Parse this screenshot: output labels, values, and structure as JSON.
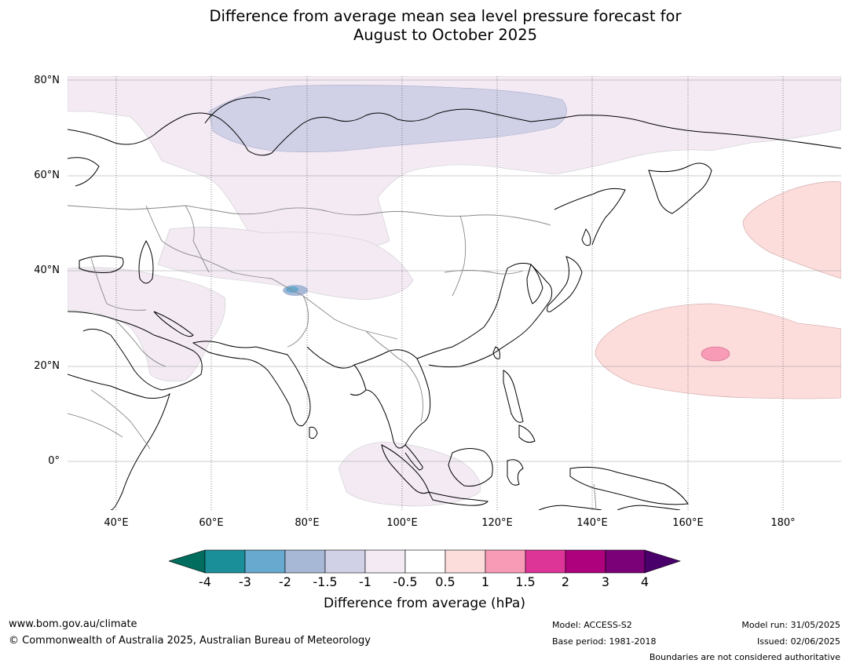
{
  "title": {
    "line1": "Difference from average mean sea level pressure forecast for",
    "line2": "August to October 2025"
  },
  "map": {
    "lat_labels": [
      "80°N",
      "60°N",
      "40°N",
      "20°N",
      "0°"
    ],
    "lon_labels": [
      "40°E",
      "60°E",
      "80°E",
      "100°E",
      "120°E",
      "140°E",
      "160°E",
      "180°"
    ],
    "colors": {
      "land_outline": "#000000",
      "border": "#888888",
      "grid": "#999999"
    }
  },
  "colorbar": {
    "ticks": [
      "-4",
      "-3",
      "-2",
      "-1.5",
      "-1",
      "-0.5",
      "0.5",
      "1",
      "1.5",
      "2",
      "3",
      "4"
    ],
    "colors": [
      "#006d5e",
      "#1b8f99",
      "#67a9cf",
      "#a6b8d6",
      "#d0d1e6",
      "#f3eaf4",
      "#ffffff",
      "#fddcdc",
      "#f89bb7",
      "#dd3497",
      "#ae017e",
      "#7a0177",
      "#49006a"
    ],
    "label": "Difference from average (hPa)"
  },
  "footer": {
    "website": "www.bom.gov.au/climate",
    "copyright": "© Commonwealth of Australia 2025, Australian Bureau of Meteorology",
    "model": "Model: ACCESS-S2",
    "base_period": "Base period: 1981-2018",
    "model_run": "Model run: 31/05/2025",
    "issued": "Issued: 02/06/2025",
    "disclaimer": "Boundaries are not considered authoritative"
  }
}
